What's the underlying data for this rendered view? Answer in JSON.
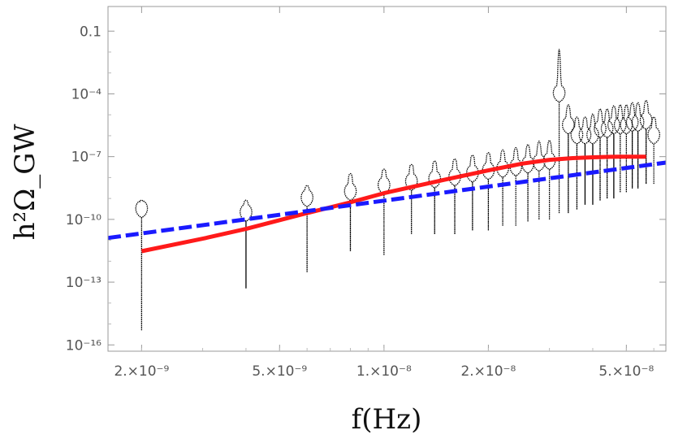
{
  "chart_data": {
    "type": "line",
    "title": "",
    "xlabel": "f(Hz)",
    "ylabel": "h²Ω_GW",
    "xscale": "log",
    "yscale": "log",
    "xlim": [
      1.6e-09,
      6.5e-08
    ],
    "ylim": [
      5e-17,
      1.5
    ],
    "grid": false,
    "legend": "none",
    "x_ticks": [
      {
        "value": 2e-09,
        "label": "2.×10⁻⁹"
      },
      {
        "value": 5e-09,
        "label": "5.×10⁻⁹"
      },
      {
        "value": 1e-08,
        "label": "1.×10⁻⁸"
      },
      {
        "value": 2e-08,
        "label": "2.×10⁻⁸"
      },
      {
        "value": 5e-08,
        "label": "5.×10⁻⁸"
      }
    ],
    "y_ticks": [
      {
        "value": 0.1,
        "label": "0.1"
      },
      {
        "value": 0.0001,
        "label": "10⁻⁴"
      },
      {
        "value": 1e-07,
        "label": "10⁻⁷"
      },
      {
        "value": 1e-10,
        "label": "10⁻¹⁰"
      },
      {
        "value": 1e-13,
        "label": "10⁻¹³"
      },
      {
        "value": 1e-16,
        "label": "10⁻¹⁶"
      }
    ],
    "series": [
      {
        "style": "solid",
        "color": "#ff1a1a",
        "x": [
          2e-09,
          3e-09,
          4e-09,
          6e-09,
          8e-09,
          1e-08,
          1.5e-08,
          2e-08,
          2.5e-08,
          3e-08,
          3.5e-08,
          4e-08,
          4.5e-08,
          5e-08,
          5.7e-08
        ],
        "y": [
          3e-12,
          1.2e-11,
          3.5e-11,
          2e-10,
          6.5e-10,
          1.8e-09,
          8e-09,
          2.2e-08,
          4.6e-08,
          7e-08,
          8.5e-08,
          9.3e-08,
          9.8e-08,
          1e-07,
          1e-07
        ]
      },
      {
        "style": "dashed",
        "color": "#1a1aff",
        "x": [
          1.6e-09,
          6.5e-08
        ],
        "y": [
          1.3e-11,
          5.2e-08
        ]
      },
      {
        "style": "violin",
        "color": "#000000",
        "violins": [
          {
            "x": 2e-09,
            "ymin": 5e-16,
            "ymax": 1e-09,
            "center": 3e-10
          },
          {
            "x": 4e-09,
            "ymin": 5e-14,
            "ymax": 1e-09,
            "center": 2e-10
          },
          {
            "x": 6e-09,
            "ymin": 3e-13,
            "ymax": 5e-09,
            "center": 1e-09
          },
          {
            "x": 8e-09,
            "ymin": 3e-12,
            "ymax": 2e-08,
            "center": 2e-09
          },
          {
            "x": 1e-08,
            "ymin": 2e-12,
            "ymax": 3e-08,
            "center": 4e-09
          },
          {
            "x": 1.2e-08,
            "ymin": 2e-11,
            "ymax": 5e-08,
            "center": 6e-09
          },
          {
            "x": 1.4e-08,
            "ymin": 2e-11,
            "ymax": 8e-08,
            "center": 8e-09
          },
          {
            "x": 1.6e-08,
            "ymin": 2e-11,
            "ymax": 1e-07,
            "center": 1e-08
          },
          {
            "x": 1.8e-08,
            "ymin": 3e-11,
            "ymax": 1.5e-07,
            "center": 1.5e-08
          },
          {
            "x": 2e-08,
            "ymin": 3e-11,
            "ymax": 2e-07,
            "center": 2e-08
          },
          {
            "x": 2.2e-08,
            "ymin": 5e-11,
            "ymax": 3e-07,
            "center": 2.5e-08
          },
          {
            "x": 2.4e-08,
            "ymin": 5e-11,
            "ymax": 4e-07,
            "center": 3e-08
          },
          {
            "x": 2.6e-08,
            "ymin": 8e-11,
            "ymax": 6e-07,
            "center": 4e-08
          },
          {
            "x": 2.8e-08,
            "ymin": 1e-10,
            "ymax": 1e-06,
            "center": 5e-08
          },
          {
            "x": 3e-08,
            "ymin": 1e-10,
            "ymax": 1e-06,
            "center": 6e-08
          },
          {
            "x": 3.2e-08,
            "ymin": 2e-10,
            "ymax": 0.3,
            "center": 0.0001
          },
          {
            "x": 3.4e-08,
            "ymin": 2e-10,
            "ymax": 5e-05,
            "center": 3e-06
          },
          {
            "x": 3.6e-08,
            "ymin": 3e-10,
            "ymax": 1e-05,
            "center": 1e-06
          },
          {
            "x": 3.8e-08,
            "ymin": 5e-10,
            "ymax": 1e-05,
            "center": 1e-06
          },
          {
            "x": 4e-08,
            "ymin": 5e-10,
            "ymax": 2e-05,
            "center": 1e-06
          },
          {
            "x": 4.2e-08,
            "ymin": 8e-10,
            "ymax": 3e-05,
            "center": 2e-06
          },
          {
            "x": 4.4e-08,
            "ymin": 1e-09,
            "ymax": 3e-05,
            "center": 2e-06
          },
          {
            "x": 4.6e-08,
            "ymin": 1e-09,
            "ymax": 4e-05,
            "center": 3e-06
          },
          {
            "x": 4.8e-08,
            "ymin": 2e-09,
            "ymax": 5e-05,
            "center": 3e-06
          },
          {
            "x": 5e-08,
            "ymin": 2e-09,
            "ymax": 5e-05,
            "center": 3e-06
          },
          {
            "x": 5.2e-08,
            "ymin": 3e-09,
            "ymax": 6e-05,
            "center": 4e-06
          },
          {
            "x": 5.4e-08,
            "ymin": 3e-09,
            "ymax": 6e-05,
            "center": 4e-06
          },
          {
            "x": 5.7e-08,
            "ymin": 5e-09,
            "ymax": 8e-05,
            "center": 5e-06
          },
          {
            "x": 6e-08,
            "ymin": 5e-09,
            "ymax": 1e-05,
            "center": 1e-06
          }
        ]
      }
    ]
  }
}
